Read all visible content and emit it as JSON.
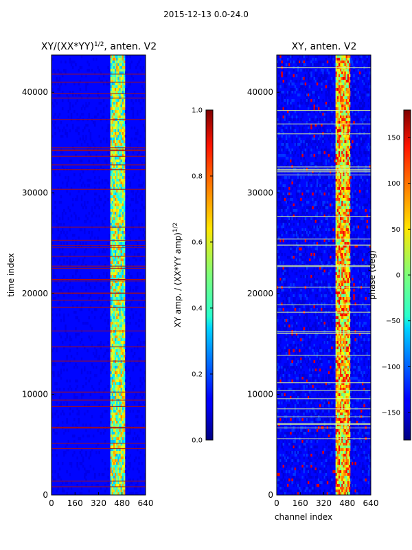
{
  "figure_title": "2015-12-13 0.0-24.0",
  "chart_data": [
    {
      "type": "heatmap",
      "title": "XY/(XX*YY)",
      "title_sup": "1/2",
      "title_suffix": ", anten. V2",
      "xlabel": "",
      "ylabel": "time index",
      "xlim": [
        0,
        640
      ],
      "ylim": [
        0,
        43700
      ],
      "xticks": [
        0,
        160,
        320,
        480,
        640
      ],
      "yticks": [
        0,
        10000,
        20000,
        30000,
        40000
      ],
      "colorbar": {
        "label": "XY amp. / (XX*YY amp)",
        "label_sup": "1/2",
        "range": [
          0.0,
          1.0
        ],
        "ticks": [
          "0.0",
          "0.2",
          "0.4",
          "0.6",
          "0.8",
          "1.0"
        ],
        "colormap": "jet"
      },
      "flagged_rows_color": "#aa1010",
      "high_amplitude_channel_band": [
        400,
        500
      ]
    },
    {
      "type": "heatmap",
      "title": "XY, anten. V2",
      "xlabel": "channel index",
      "ylabel": "",
      "xlim": [
        0,
        640
      ],
      "ylim": [
        0,
        43700
      ],
      "xticks": [
        0,
        160,
        320,
        480,
        640
      ],
      "yticks": [
        0,
        10000,
        20000,
        30000,
        40000
      ],
      "colorbar": {
        "label": "phase (deg)",
        "range": [
          -180,
          180
        ],
        "ticks": [
          "-150",
          "-100",
          "-50",
          "0",
          "50",
          "100",
          "150"
        ],
        "colormap": "jet"
      },
      "flagged_rows_color": "#d8f59a",
      "high_phase_channel_band": [
        400,
        500
      ]
    }
  ]
}
